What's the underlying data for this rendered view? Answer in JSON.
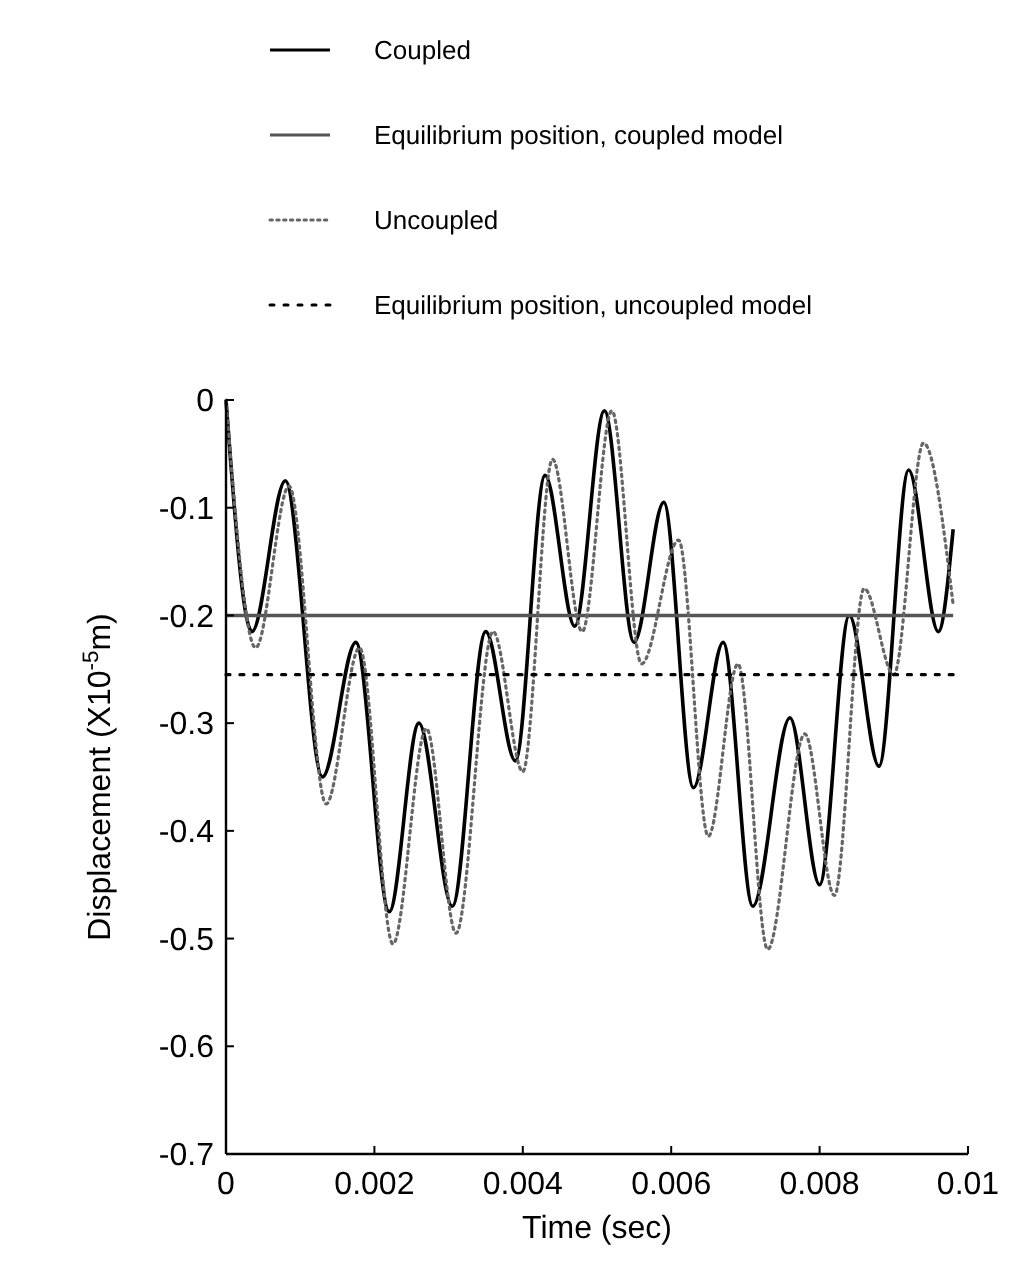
{
  "chart_data": {
    "type": "line",
    "xlabel": "Time (sec)",
    "ylabel": "Displacement (X10$^{-5}$m)",
    "xlim": [
      0,
      0.01
    ],
    "xticks": [
      0,
      0.002,
      0.004,
      0.006,
      0.008,
      0.01
    ],
    "ylim": [
      -0.7,
      0
    ],
    "yticks": [
      0,
      -0.1,
      -0.2,
      -0.3,
      -0.4,
      -0.5,
      -0.6,
      -0.7
    ],
    "grid": false,
    "legend": "top",
    "marker": "none",
    "series": [
      {
        "name": "Coupled",
        "color": "#000000",
        "line_style": "solid",
        "x": [
          0,
          0.00035,
          0.0008,
          0.0013,
          0.00175,
          0.0022,
          0.0026,
          0.00305,
          0.0035,
          0.0039,
          0.0043,
          0.0047,
          0.0051,
          0.0055,
          0.0059,
          0.0063,
          0.0067,
          0.0071,
          0.0076,
          0.008,
          0.0084,
          0.0088,
          0.0092,
          0.0096,
          0.0098
        ],
        "values": [
          0,
          -0.215,
          -0.075,
          -0.35,
          -0.225,
          -0.475,
          -0.3,
          -0.47,
          -0.215,
          -0.335,
          -0.07,
          -0.21,
          -0.01,
          -0.225,
          -0.095,
          -0.36,
          -0.225,
          -0.47,
          -0.295,
          -0.45,
          -0.2,
          -0.34,
          -0.065,
          -0.215,
          -0.12
        ]
      },
      {
        "name": "Equilibrium position, coupled model",
        "color": "#555555",
        "line_style": "solid",
        "x": [
          0,
          0.0098
        ],
        "values": [
          -0.2,
          -0.2
        ]
      },
      {
        "name": "Uncoupled",
        "color": "#666666",
        "line_style": "dotted",
        "x": [
          0,
          0.0004,
          0.00085,
          0.00135,
          0.0018,
          0.00225,
          0.0027,
          0.0031,
          0.0036,
          0.004,
          0.0044,
          0.0048,
          0.0052,
          0.0056,
          0.0061,
          0.0065,
          0.0069,
          0.0073,
          0.0078,
          0.0082,
          0.0086,
          0.009,
          0.0094,
          0.0098
        ],
        "values": [
          0,
          -0.23,
          -0.08,
          -0.375,
          -0.23,
          -0.505,
          -0.305,
          -0.495,
          -0.215,
          -0.345,
          -0.055,
          -0.215,
          -0.01,
          -0.245,
          -0.13,
          -0.405,
          -0.245,
          -0.51,
          -0.31,
          -0.46,
          -0.175,
          -0.255,
          -0.04,
          -0.19
        ]
      },
      {
        "name": "Equilibrium position, uncoupled model",
        "color": "#000000",
        "line_style": "dashed",
        "x": [
          0,
          0.0098
        ],
        "values": [
          -0.255,
          -0.255
        ]
      }
    ]
  }
}
